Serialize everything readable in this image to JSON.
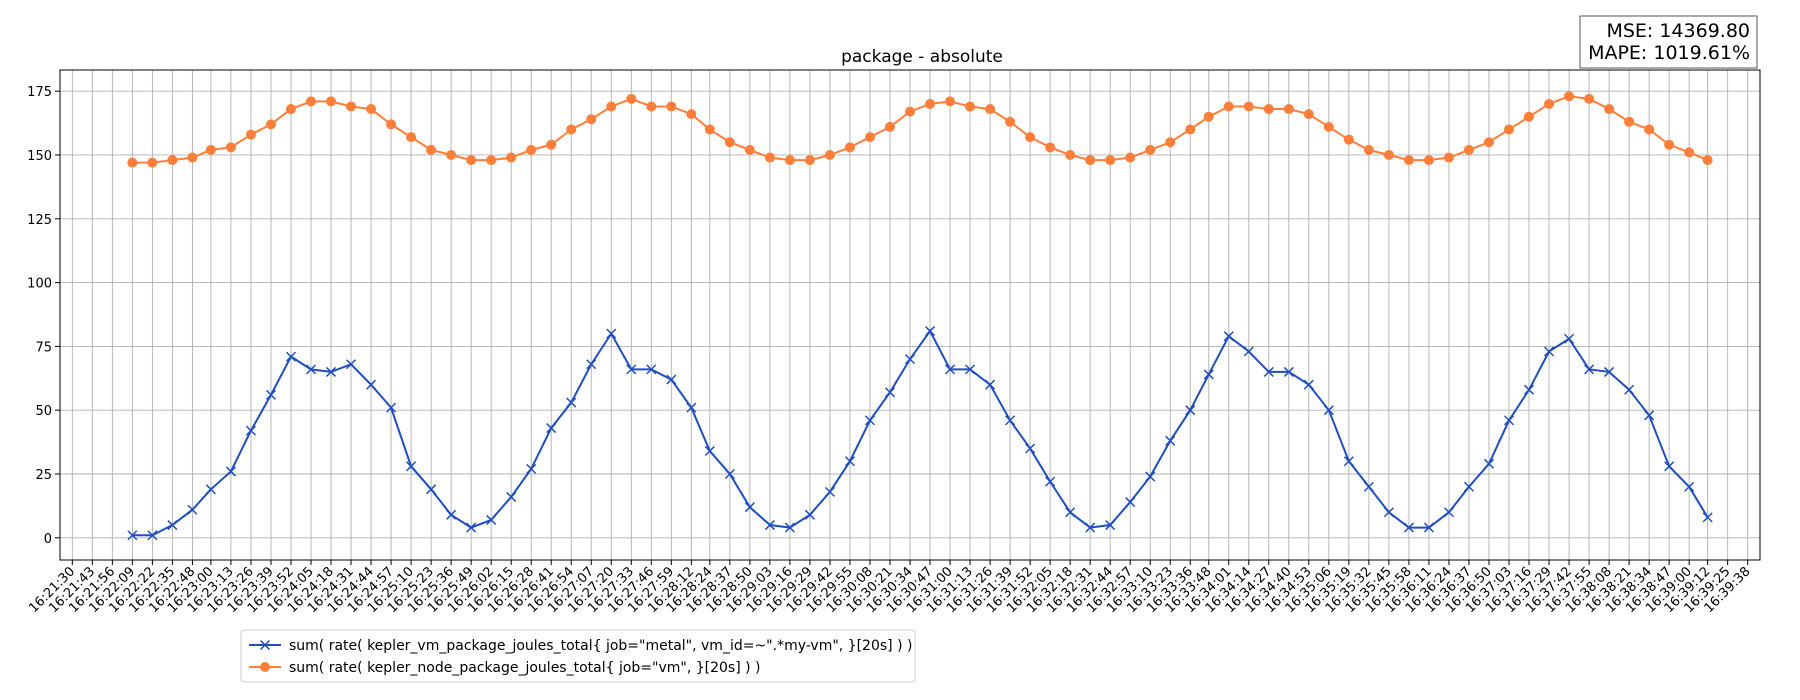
{
  "chart_data": {
    "type": "line",
    "title": "package - absolute",
    "annotations": [
      "MSE: 14369.80",
      "MAPE: 1019.61%"
    ],
    "grid": true,
    "legend": "lower left",
    "xlim": [
      "16:21:22",
      "16:39:46"
    ],
    "ylim": [
      -8.7,
      183.3
    ],
    "yticks": [
      0,
      25,
      50,
      75,
      100,
      125,
      150,
      175
    ],
    "xticks": [
      "16:21:30",
      "16:21:43",
      "16:21:56",
      "16:22:09",
      "16:22:22",
      "16:22:35",
      "16:22:48",
      "16:23:00",
      "16:23:13",
      "16:23:26",
      "16:23:39",
      "16:23:52",
      "16:24:05",
      "16:24:18",
      "16:24:31",
      "16:24:44",
      "16:24:57",
      "16:25:10",
      "16:25:23",
      "16:25:36",
      "16:25:49",
      "16:26:02",
      "16:26:15",
      "16:26:28",
      "16:26:41",
      "16:26:54",
      "16:27:07",
      "16:27:20",
      "16:27:33",
      "16:27:46",
      "16:27:59",
      "16:28:12",
      "16:28:24",
      "16:28:37",
      "16:28:50",
      "16:29:03",
      "16:29:16",
      "16:29:29",
      "16:29:42",
      "16:29:55",
      "16:30:08",
      "16:30:21",
      "16:30:34",
      "16:30:47",
      "16:31:00",
      "16:31:13",
      "16:31:26",
      "16:31:39",
      "16:31:52",
      "16:32:05",
      "16:32:18",
      "16:32:31",
      "16:32:44",
      "16:32:57",
      "16:33:10",
      "16:33:23",
      "16:33:36",
      "16:33:48",
      "16:34:01",
      "16:34:14",
      "16:34:27",
      "16:34:40",
      "16:34:53",
      "16:35:06",
      "16:35:19",
      "16:35:32",
      "16:35:45",
      "16:35:58",
      "16:36:11",
      "16:36:24",
      "16:36:37",
      "16:36:50",
      "16:37:03",
      "16:37:16",
      "16:37:29",
      "16:37:42",
      "16:37:55",
      "16:38:08",
      "16:38:21",
      "16:38:34",
      "16:38:47",
      "16:39:00",
      "16:39:12",
      "16:39:25",
      "16:39:38"
    ],
    "x": [
      "16:22:09",
      "16:22:22",
      "16:22:35",
      "16:22:48",
      "16:23:00",
      "16:23:13",
      "16:23:26",
      "16:23:39",
      "16:23:52",
      "16:24:05",
      "16:24:18",
      "16:24:31",
      "16:24:44",
      "16:24:57",
      "16:25:10",
      "16:25:23",
      "16:25:36",
      "16:25:49",
      "16:26:02",
      "16:26:15",
      "16:26:28",
      "16:26:41",
      "16:26:54",
      "16:27:07",
      "16:27:20",
      "16:27:33",
      "16:27:46",
      "16:27:59",
      "16:28:12",
      "16:28:24",
      "16:28:37",
      "16:28:50",
      "16:29:03",
      "16:29:16",
      "16:29:29",
      "16:29:42",
      "16:29:55",
      "16:30:08",
      "16:30:21",
      "16:30:34",
      "16:30:47",
      "16:31:00",
      "16:31:13",
      "16:31:26",
      "16:31:39",
      "16:31:52",
      "16:32:05",
      "16:32:18",
      "16:32:31",
      "16:32:44",
      "16:32:57",
      "16:33:10",
      "16:33:23",
      "16:33:36",
      "16:33:48",
      "16:34:01",
      "16:34:14",
      "16:34:27",
      "16:34:40",
      "16:34:53",
      "16:35:06",
      "16:35:19",
      "16:35:32",
      "16:35:45",
      "16:35:58",
      "16:36:11",
      "16:36:24",
      "16:36:37",
      "16:36:50",
      "16:37:03",
      "16:37:16",
      "16:37:29",
      "16:37:42",
      "16:37:55",
      "16:38:08",
      "16:38:21",
      "16:38:34",
      "16:38:47",
      "16:39:00",
      "16:39:12"
    ],
    "series": [
      {
        "name": "sum( rate( kepler_vm_package_joules_total{ job=\"metal\", vm_id=~\".*my-vm\", }[20s] ) )",
        "color": "#1f4fbf",
        "marker": "x",
        "values": [
          1,
          1,
          5,
          11,
          19,
          26,
          42,
          56,
          71,
          66,
          65,
          68,
          60,
          51,
          28,
          19,
          9,
          4,
          7,
          16,
          27,
          43,
          53,
          68,
          80,
          66,
          66,
          62,
          51,
          34,
          25,
          12,
          5,
          4,
          9,
          18,
          30,
          46,
          57,
          70,
          81,
          66,
          66,
          60,
          46,
          35,
          22,
          10,
          4,
          5,
          14,
          24,
          38,
          50,
          64,
          79,
          73,
          65,
          65,
          60,
          50,
          30,
          20,
          10,
          4,
          4,
          10,
          20,
          29,
          46,
          58,
          73,
          78,
          66,
          65,
          58,
          48,
          28,
          20,
          8
        ]
      },
      {
        "name": "sum( rate( kepler_node_package_joules_total{ job=\"vm\", }[20s] ) )",
        "color": "#ff7f3a",
        "marker": "o",
        "values": [
          147,
          147,
          148,
          149,
          152,
          153,
          158,
          162,
          168,
          171,
          171,
          169,
          168,
          162,
          157,
          152,
          150,
          148,
          148,
          149,
          152,
          154,
          160,
          164,
          169,
          172,
          169,
          169,
          166,
          160,
          155,
          152,
          149,
          148,
          148,
          150,
          153,
          157,
          161,
          167,
          170,
          171,
          169,
          168,
          163,
          157,
          153,
          150,
          148,
          148,
          149,
          152,
          155,
          160,
          165,
          169,
          169,
          168,
          168,
          166,
          161,
          156,
          152,
          150,
          148,
          148,
          149,
          152,
          155,
          160,
          165,
          170,
          173,
          172,
          168,
          163,
          160,
          154,
          151,
          148
        ]
      }
    ]
  }
}
